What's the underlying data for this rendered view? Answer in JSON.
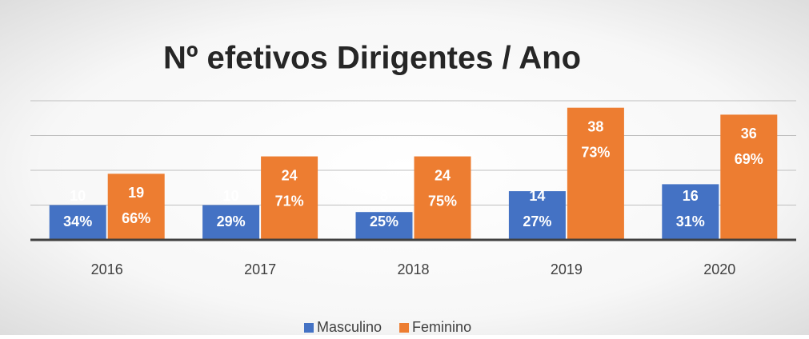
{
  "chart_data": {
    "type": "bar",
    "title": "Nº  efetivos Dirigentes / Ano",
    "categories": [
      "2016",
      "2017",
      "2018",
      "2019",
      "2020"
    ],
    "series": [
      {
        "name": "Masculino",
        "color": "#4472c4",
        "values": [
          10,
          10,
          8,
          14,
          16
        ],
        "percent_labels": [
          "34%",
          "29%",
          "25%",
          "27%",
          "31%"
        ]
      },
      {
        "name": "Feminino",
        "color": "#ed7d31",
        "values": [
          19,
          24,
          24,
          38,
          36
        ],
        "percent_labels": [
          "66%",
          "71%",
          "75%",
          "73%",
          "69%"
        ]
      }
    ],
    "ylim": [
      0,
      40
    ],
    "yticks": [
      0,
      10,
      20,
      30,
      40
    ],
    "grid": true,
    "legend": "bottom"
  }
}
